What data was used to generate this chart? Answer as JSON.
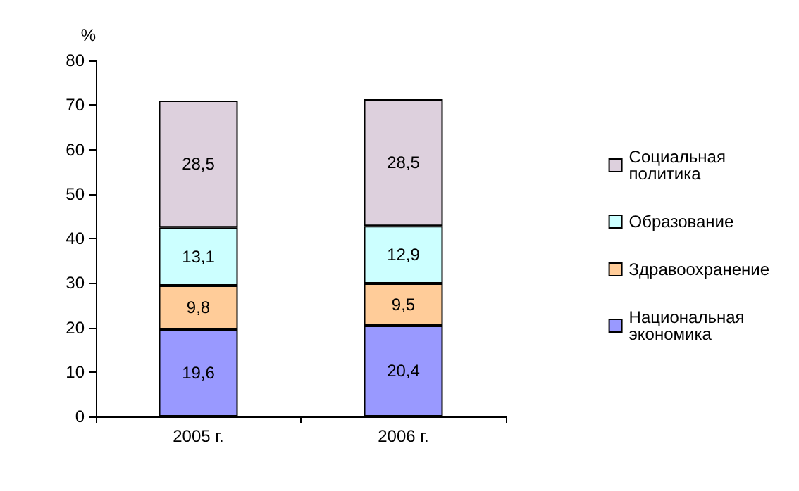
{
  "chart_data": {
    "type": "bar",
    "stacked": true,
    "ylabel": "%",
    "categories": [
      "2005 г.",
      "2006 г."
    ],
    "ylim": [
      0,
      80
    ],
    "yticks": [
      0,
      10,
      20,
      30,
      40,
      50,
      60,
      70,
      80
    ],
    "grid": false,
    "legend": "right",
    "series": [
      {
        "name": "Национальная экономика",
        "color": "#9999ff",
        "values": [
          19.6,
          20.4
        ],
        "value_labels": [
          "19,6",
          "20,4"
        ]
      },
      {
        "name": "Здравоохранение",
        "color": "#ffcc99",
        "values": [
          9.8,
          9.5
        ],
        "value_labels": [
          "9,8",
          "9,5"
        ]
      },
      {
        "name": "Образование",
        "color": "#ccffff",
        "values": [
          13.1,
          12.9
        ],
        "value_labels": [
          "13,1",
          "12,9"
        ]
      },
      {
        "name": "Социальная политика",
        "color": "#ddd0dd",
        "values": [
          28.5,
          28.5
        ],
        "value_labels": [
          "28,5",
          "28,5"
        ]
      }
    ]
  }
}
